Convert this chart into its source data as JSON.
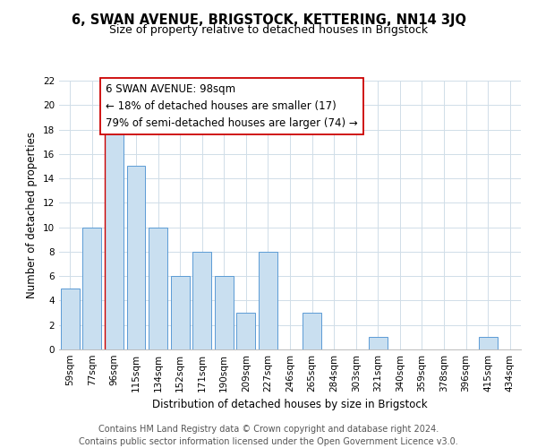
{
  "title": "6, SWAN AVENUE, BRIGSTOCK, KETTERING, NN14 3JQ",
  "subtitle": "Size of property relative to detached houses in Brigstock",
  "xlabel": "Distribution of detached houses by size in Brigstock",
  "ylabel": "Number of detached properties",
  "categories": [
    "59sqm",
    "77sqm",
    "96sqm",
    "115sqm",
    "134sqm",
    "152sqm",
    "171sqm",
    "190sqm",
    "209sqm",
    "227sqm",
    "246sqm",
    "265sqm",
    "284sqm",
    "303sqm",
    "321sqm",
    "340sqm",
    "359sqm",
    "378sqm",
    "396sqm",
    "415sqm",
    "434sqm"
  ],
  "values": [
    5,
    10,
    18,
    15,
    10,
    6,
    8,
    6,
    3,
    8,
    0,
    3,
    0,
    0,
    1,
    0,
    0,
    0,
    0,
    1,
    0
  ],
  "bar_color": "#c9dff0",
  "bar_edge_color": "#5b9bd5",
  "highlight_index": 2,
  "highlight_line_color": "#cc0000",
  "ylim": [
    0,
    22
  ],
  "yticks": [
    0,
    2,
    4,
    6,
    8,
    10,
    12,
    14,
    16,
    18,
    20,
    22
  ],
  "annotation_line1": "6 SWAN AVENUE: 98sqm",
  "annotation_line2": "← 18% of detached houses are smaller (17)",
  "annotation_line3": "79% of semi-detached houses are larger (74) →",
  "footer_line1": "Contains HM Land Registry data © Crown copyright and database right 2024.",
  "footer_line2": "Contains public sector information licensed under the Open Government Licence v3.0.",
  "background_color": "#ffffff",
  "grid_color": "#d0dde8",
  "title_fontsize": 10.5,
  "subtitle_fontsize": 9,
  "axis_label_fontsize": 8.5,
  "tick_fontsize": 7.5,
  "annotation_fontsize": 8.5,
  "footer_fontsize": 7
}
